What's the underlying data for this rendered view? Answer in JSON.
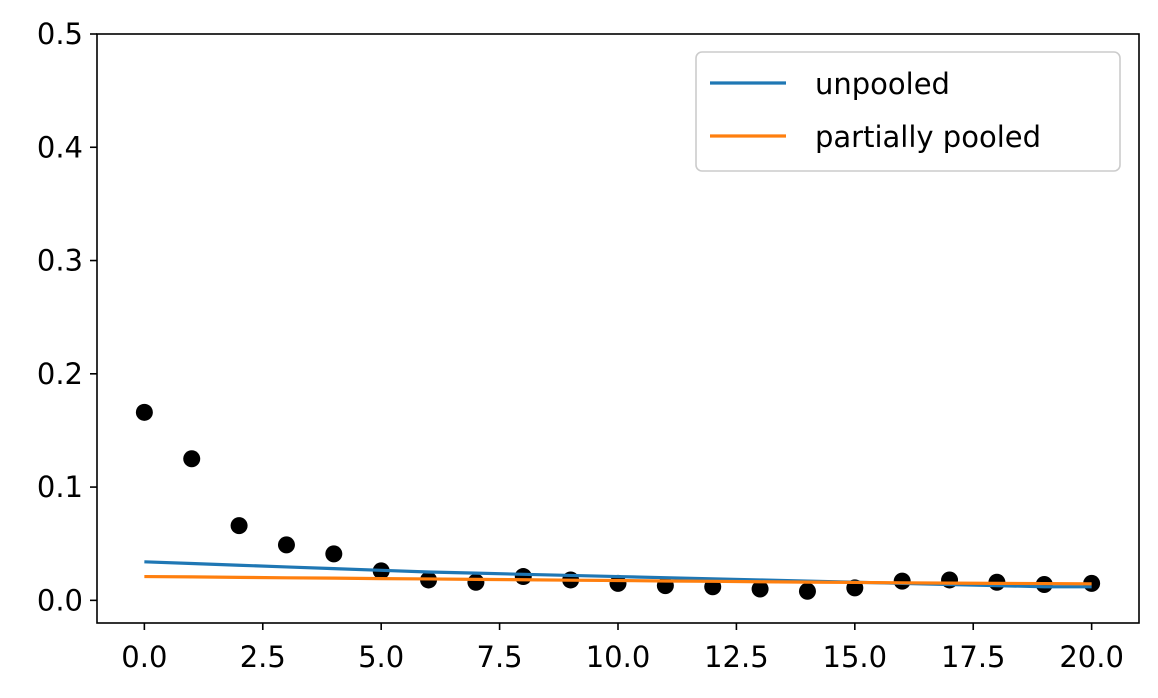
{
  "chart_data": {
    "type": "line",
    "title": "",
    "xlabel": "",
    "ylabel": "",
    "xlim": [
      -1,
      21
    ],
    "ylim": [
      -0.02,
      0.5
    ],
    "xticks": [
      0,
      2.5,
      5,
      7.5,
      10,
      12.5,
      15,
      17.5,
      20
    ],
    "xtick_labels": [
      "0.0",
      "2.5",
      "5.0",
      "7.5",
      "10.0",
      "12.5",
      "15.0",
      "17.5",
      "20.0"
    ],
    "yticks": [
      0,
      0.1,
      0.2,
      0.3,
      0.4,
      0.5
    ],
    "ytick_labels": [
      "0.0",
      "0.1",
      "0.2",
      "0.3",
      "0.4",
      "0.5"
    ],
    "grid": false,
    "legend_position": "top-right",
    "observed": {
      "color": "#000000",
      "x": [
        0,
        1,
        2,
        3,
        4,
        5,
        6,
        7,
        8,
        9,
        10,
        11,
        12,
        13,
        14,
        15,
        16,
        17,
        18,
        19,
        20
      ],
      "y": [
        0.166,
        0.125,
        0.066,
        0.049,
        0.041,
        0.026,
        0.018,
        0.016,
        0.021,
        0.018,
        0.015,
        0.013,
        0.012,
        0.01,
        0.008,
        0.011,
        0.017,
        0.018,
        0.016,
        0.014,
        0.015
      ]
    },
    "series": [
      {
        "name": "unpooled",
        "color": "#1f77b4",
        "x": [
          0,
          1,
          2,
          3,
          4,
          5,
          6,
          7,
          8,
          9,
          10,
          11,
          12,
          13,
          14,
          15,
          16,
          17,
          18,
          19,
          20
        ],
        "y": [
          0.034,
          0.0325,
          0.031,
          0.0295,
          0.028,
          0.0265,
          0.025,
          0.024,
          0.023,
          0.022,
          0.021,
          0.02,
          0.019,
          0.018,
          0.017,
          0.016,
          0.015,
          0.014,
          0.013,
          0.012,
          0.012
        ]
      },
      {
        "name": "partially pooled",
        "color": "#ff7f0e",
        "x": [
          0,
          1,
          2,
          3,
          4,
          5,
          6,
          7,
          8,
          9,
          10,
          11,
          12,
          13,
          14,
          15,
          16,
          17,
          18,
          19,
          20
        ],
        "y": [
          0.021,
          0.0207,
          0.0203,
          0.0199,
          0.0196,
          0.0192,
          0.0189,
          0.0185,
          0.0182,
          0.0178,
          0.0175,
          0.0171,
          0.0168,
          0.0164,
          0.0161,
          0.0158,
          0.0155,
          0.0152,
          0.015,
          0.0148,
          0.0146
        ]
      }
    ]
  }
}
